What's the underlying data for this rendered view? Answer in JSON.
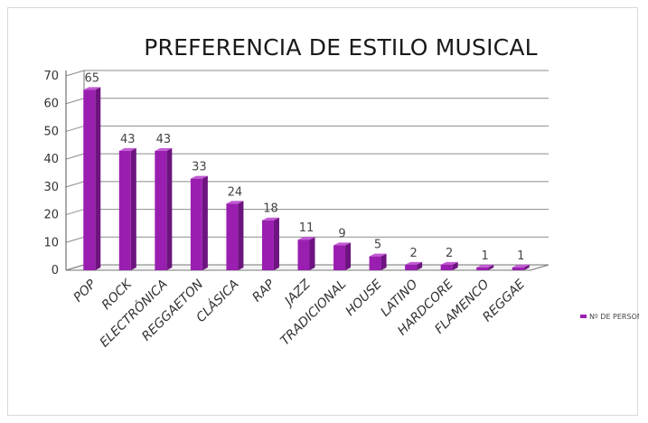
{
  "chart_data": {
    "type": "bar",
    "style": "3d-column",
    "title": "PREFERENCIA DE ESTILO MUSICAL",
    "categories": [
      "POP",
      "ROCK",
      "ELECTRÓNICA",
      "REGGAETON",
      "CLÁSICA",
      "RAP",
      "JAZZ",
      "TRADICIONAL",
      "HOUSE",
      "LATINO",
      "HARDCORE",
      "FLAMENCO",
      "REGGAE"
    ],
    "series": [
      {
        "name": "Nº DE PERSONAS",
        "values": [
          65,
          43,
          43,
          33,
          24,
          18,
          11,
          9,
          5,
          2,
          2,
          1,
          1
        ]
      }
    ],
    "data_labels": [
      "65",
      "43",
      "43",
      "33",
      "24",
      "18",
      "11",
      "9",
      "5",
      "2",
      "2",
      "1",
      "1"
    ],
    "yticks": [
      "0",
      "10",
      "20",
      "30",
      "40",
      "50",
      "60",
      "70"
    ],
    "ylim": [
      0,
      70
    ],
    "xlabel": "",
    "ylabel": "",
    "grid": true,
    "legend_position": "right",
    "colors": {
      "bar_front": "#9a1fb0",
      "bar_side": "#6e1480",
      "bar_top": "#c25ad4",
      "grid": "#8c8c8c"
    }
  }
}
